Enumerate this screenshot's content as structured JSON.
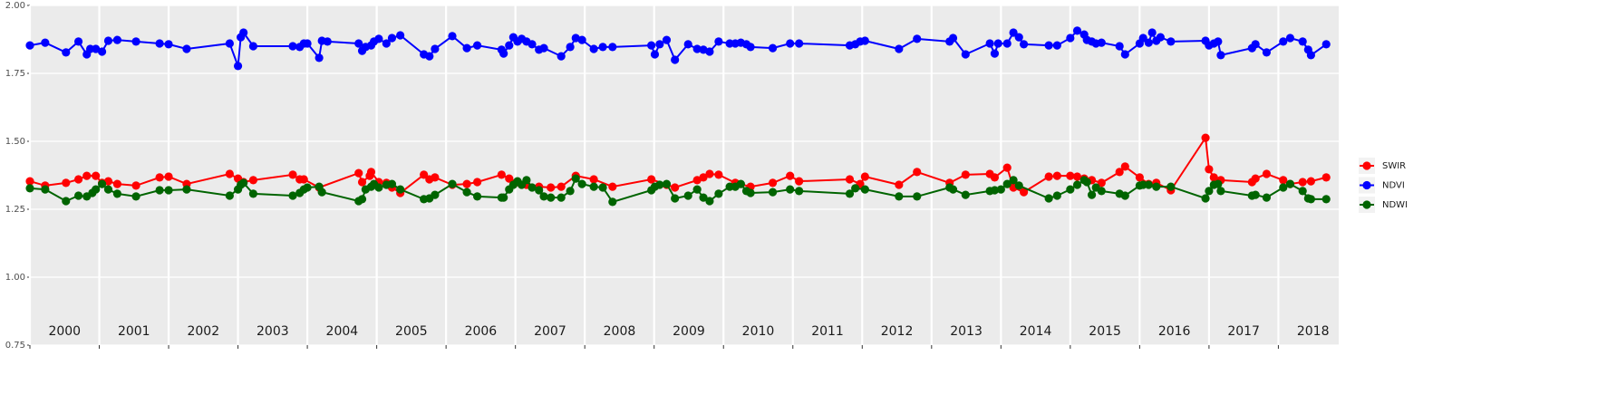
{
  "chart_data": {
    "type": "line",
    "xlim": [
      2000,
      2018.87
    ],
    "xticks": [
      2000,
      2001,
      2002,
      2003,
      2004,
      2005,
      2006,
      2007,
      2008,
      2009,
      2010,
      2011,
      2012,
      2013,
      2014,
      2015,
      2016,
      2017,
      2018
    ],
    "ylim": [
      0.75,
      2.0
    ],
    "yticks": [
      {
        "value": 0.75,
        "label": "0.75"
      },
      {
        "value": 1.0,
        "label": "1.00"
      },
      {
        "value": 1.25,
        "label": "1.25"
      },
      {
        "value": 1.5,
        "label": "1.50"
      },
      {
        "value": 1.75,
        "label": "1.75"
      },
      {
        "value": 2.0,
        "label": "2.00"
      }
    ],
    "grid": true,
    "legend": "right",
    "series": [
      {
        "name": "SWIR",
        "color": "#ff0000",
        "x": [
          2000.0,
          2000.22,
          2000.52,
          2000.7,
          2000.82,
          2000.95,
          2001.04,
          2001.13,
          2001.26,
          2001.53,
          2001.87,
          2002.0,
          2002.26,
          2002.88,
          2003.0,
          2003.08,
          2003.22,
          2003.79,
          2003.89,
          2003.95,
          2004.17,
          2004.74,
          2004.79,
          2004.9,
          2004.92,
          2005.03,
          2005.14,
          2005.22,
          2005.34,
          2005.68,
          2005.76,
          2005.84,
          2006.09,
          2006.3,
          2006.45,
          2006.8,
          2006.91,
          2007.03,
          2007.16,
          2007.34,
          2007.51,
          2007.66,
          2007.87,
          2008.13,
          2008.4,
          2008.96,
          2009.18,
          2009.3,
          2009.62,
          2009.71,
          2009.8,
          2009.93,
          2010.17,
          2010.39,
          2010.71,
          2010.96,
          2011.09,
          2011.82,
          2011.97,
          2012.04,
          2012.53,
          2012.79,
          2013.26,
          2013.49,
          2013.84,
          2013.91,
          2014.09,
          2014.18,
          2014.33,
          2014.69,
          2014.81,
          2015.0,
          2015.1,
          2015.2,
          2015.31,
          2015.45,
          2015.71,
          2015.79,
          2016.0,
          2016.13,
          2016.24,
          2016.45,
          2016.95,
          2017.0,
          2017.07,
          2017.17,
          2017.62,
          2017.67,
          2017.83,
          2018.07,
          2018.17,
          2018.35,
          2018.47,
          2018.69
        ],
        "values": [
          1.353,
          1.337,
          1.347,
          1.36,
          1.373,
          1.373,
          1.347,
          1.353,
          1.343,
          1.337,
          1.367,
          1.37,
          1.343,
          1.38,
          1.363,
          1.35,
          1.357,
          1.377,
          1.36,
          1.36,
          1.33,
          1.383,
          1.35,
          1.373,
          1.387,
          1.35,
          1.347,
          1.33,
          1.31,
          1.377,
          1.36,
          1.367,
          1.34,
          1.343,
          1.35,
          1.377,
          1.363,
          1.35,
          1.34,
          1.333,
          1.33,
          1.333,
          1.373,
          1.36,
          1.333,
          1.36,
          1.34,
          1.33,
          1.357,
          1.367,
          1.38,
          1.377,
          1.347,
          1.333,
          1.347,
          1.373,
          1.353,
          1.36,
          1.343,
          1.37,
          1.34,
          1.387,
          1.347,
          1.377,
          1.38,
          1.367,
          1.403,
          1.33,
          1.313,
          1.37,
          1.373,
          1.373,
          1.37,
          1.363,
          1.357,
          1.347,
          1.387,
          1.407,
          1.367,
          1.343,
          1.347,
          1.32,
          1.513,
          1.397,
          1.367,
          1.357,
          1.35,
          1.363,
          1.38,
          1.357,
          1.343,
          1.35,
          1.353,
          1.367
        ]
      },
      {
        "name": "NDVI",
        "color": "#0000ff",
        "x": [
          2000.0,
          2000.22,
          2000.52,
          2000.7,
          2000.82,
          2000.87,
          2000.95,
          2001.04,
          2001.13,
          2001.26,
          2001.53,
          2001.87,
          2002.0,
          2002.26,
          2002.88,
          2003.0,
          2003.04,
          2003.08,
          2003.22,
          2003.79,
          2003.89,
          2003.95,
          2004.0,
          2004.17,
          2004.21,
          2004.29,
          2004.74,
          2004.79,
          2004.84,
          2004.92,
          2004.96,
          2005.03,
          2005.14,
          2005.22,
          2005.34,
          2005.68,
          2005.76,
          2005.84,
          2006.09,
          2006.3,
          2006.45,
          2006.8,
          2006.83,
          2006.91,
          2006.97,
          2007.03,
          2007.09,
          2007.16,
          2007.24,
          2007.34,
          2007.41,
          2007.66,
          2007.79,
          2007.87,
          2007.96,
          2008.13,
          2008.26,
          2008.4,
          2008.96,
          2009.01,
          2009.08,
          2009.18,
          2009.3,
          2009.49,
          2009.62,
          2009.71,
          2009.8,
          2009.93,
          2010.09,
          2010.17,
          2010.25,
          2010.33,
          2010.39,
          2010.71,
          2010.96,
          2011.09,
          2011.82,
          2011.9,
          2011.97,
          2012.04,
          2012.53,
          2012.79,
          2013.26,
          2013.31,
          2013.49,
          2013.84,
          2013.91,
          2013.96,
          2014.09,
          2014.18,
          2014.26,
          2014.33,
          2014.69,
          2014.81,
          2015.0,
          2015.1,
          2015.2,
          2015.24,
          2015.31,
          2015.37,
          2015.45,
          2015.71,
          2015.79,
          2016.0,
          2016.05,
          2016.13,
          2016.18,
          2016.24,
          2016.3,
          2016.45,
          2016.95,
          2017.0,
          2017.07,
          2017.13,
          2017.17,
          2017.62,
          2017.67,
          2017.83,
          2018.07,
          2018.17,
          2018.35,
          2018.43,
          2018.47,
          2018.69
        ],
        "values": [
          1.853,
          1.863,
          1.827,
          1.867,
          1.82,
          1.84,
          1.84,
          1.83,
          1.87,
          1.873,
          1.867,
          1.86,
          1.857,
          1.84,
          1.86,
          1.777,
          1.883,
          1.9,
          1.85,
          1.85,
          1.847,
          1.86,
          1.86,
          1.807,
          1.87,
          1.867,
          1.86,
          1.833,
          1.847,
          1.853,
          1.867,
          1.877,
          1.86,
          1.88,
          1.89,
          1.82,
          1.813,
          1.84,
          1.887,
          1.843,
          1.853,
          1.837,
          1.823,
          1.853,
          1.883,
          1.867,
          1.877,
          1.867,
          1.857,
          1.837,
          1.843,
          1.813,
          1.847,
          1.88,
          1.873,
          1.84,
          1.847,
          1.847,
          1.853,
          1.82,
          1.857,
          1.873,
          1.8,
          1.857,
          1.84,
          1.837,
          1.83,
          1.867,
          1.86,
          1.86,
          1.863,
          1.857,
          1.847,
          1.843,
          1.86,
          1.86,
          1.853,
          1.857,
          1.867,
          1.87,
          1.84,
          1.877,
          1.867,
          1.88,
          1.82,
          1.86,
          1.823,
          1.86,
          1.86,
          1.9,
          1.883,
          1.857,
          1.853,
          1.853,
          1.88,
          1.907,
          1.893,
          1.873,
          1.867,
          1.86,
          1.863,
          1.85,
          1.82,
          1.86,
          1.88,
          1.863,
          1.9,
          1.87,
          1.883,
          1.867,
          1.87,
          1.853,
          1.86,
          1.867,
          1.817,
          1.843,
          1.857,
          1.827,
          1.867,
          1.88,
          1.867,
          1.837,
          1.817,
          1.857
        ]
      },
      {
        "name": "NDWI",
        "color": "#006400",
        "x": [
          2000.0,
          2000.22,
          2000.52,
          2000.7,
          2000.82,
          2000.9,
          2000.95,
          2001.04,
          2001.13,
          2001.26,
          2001.53,
          2001.87,
          2002.0,
          2002.26,
          2002.88,
          2003.0,
          2003.04,
          2003.08,
          2003.22,
          2003.79,
          2003.89,
          2003.95,
          2004.0,
          2004.17,
          2004.21,
          2004.74,
          2004.79,
          2004.84,
          2004.92,
          2004.96,
          2005.03,
          2005.14,
          2005.22,
          2005.34,
          2005.68,
          2005.76,
          2005.84,
          2006.09,
          2006.3,
          2006.45,
          2006.8,
          2006.83,
          2006.91,
          2006.97,
          2007.03,
          2007.09,
          2007.16,
          2007.24,
          2007.34,
          2007.41,
          2007.51,
          2007.66,
          2007.79,
          2007.87,
          2007.96,
          2008.13,
          2008.26,
          2008.4,
          2008.96,
          2009.01,
          2009.08,
          2009.18,
          2009.3,
          2009.49,
          2009.62,
          2009.71,
          2009.8,
          2009.93,
          2010.09,
          2010.17,
          2010.25,
          2010.33,
          2010.39,
          2010.71,
          2010.96,
          2011.09,
          2011.82,
          2011.9,
          2012.04,
          2012.53,
          2012.79,
          2013.26,
          2013.31,
          2013.49,
          2013.84,
          2013.91,
          2014.0,
          2014.09,
          2014.18,
          2014.26,
          2014.69,
          2014.81,
          2015.0,
          2015.1,
          2015.2,
          2015.24,
          2015.31,
          2015.37,
          2015.45,
          2015.71,
          2015.79,
          2016.0,
          2016.05,
          2016.13,
          2016.24,
          2016.45,
          2016.95,
          2017.0,
          2017.07,
          2017.13,
          2017.17,
          2017.62,
          2017.67,
          2017.83,
          2018.07,
          2018.17,
          2018.35,
          2018.43,
          2018.47,
          2018.69
        ],
        "values": [
          1.327,
          1.323,
          1.28,
          1.3,
          1.297,
          1.31,
          1.323,
          1.343,
          1.323,
          1.307,
          1.297,
          1.32,
          1.32,
          1.323,
          1.3,
          1.323,
          1.34,
          1.347,
          1.307,
          1.3,
          1.31,
          1.323,
          1.33,
          1.333,
          1.313,
          1.28,
          1.287,
          1.323,
          1.333,
          1.343,
          1.33,
          1.34,
          1.343,
          1.323,
          1.287,
          1.29,
          1.303,
          1.343,
          1.313,
          1.297,
          1.293,
          1.293,
          1.323,
          1.34,
          1.353,
          1.34,
          1.357,
          1.33,
          1.32,
          1.297,
          1.293,
          1.293,
          1.317,
          1.363,
          1.343,
          1.333,
          1.33,
          1.277,
          1.32,
          1.333,
          1.34,
          1.343,
          1.29,
          1.3,
          1.323,
          1.293,
          1.28,
          1.307,
          1.333,
          1.333,
          1.343,
          1.317,
          1.31,
          1.313,
          1.323,
          1.317,
          1.307,
          1.327,
          1.323,
          1.297,
          1.297,
          1.33,
          1.323,
          1.303,
          1.317,
          1.32,
          1.323,
          1.343,
          1.357,
          1.337,
          1.29,
          1.3,
          1.323,
          1.34,
          1.357,
          1.35,
          1.303,
          1.33,
          1.317,
          1.307,
          1.3,
          1.337,
          1.34,
          1.34,
          1.333,
          1.333,
          1.29,
          1.317,
          1.34,
          1.343,
          1.317,
          1.3,
          1.303,
          1.293,
          1.33,
          1.343,
          1.317,
          1.29,
          1.287,
          1.287
        ]
      }
    ]
  }
}
